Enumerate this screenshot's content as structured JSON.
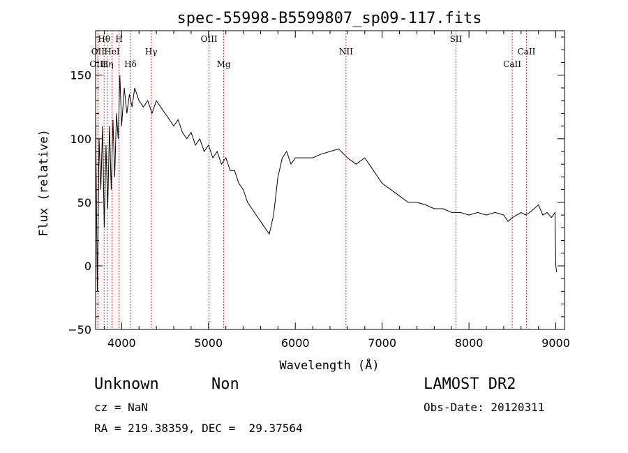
{
  "chart_data": {
    "type": "line",
    "title": "spec-55998-B5599807_sp09-117.fits",
    "xlabel": "Wavelength (Å)",
    "ylabel": "Flux (relative)",
    "xlim": [
      3700,
      9100
    ],
    "ylim": [
      -50,
      185
    ],
    "x_ticks": [
      4000,
      5000,
      6000,
      7000,
      8000,
      9000
    ],
    "y_ticks": [
      -50,
      0,
      50,
      100,
      150
    ],
    "grid": false,
    "series": [
      {
        "x": [
          3700,
          3720,
          3740,
          3760,
          3780,
          3800,
          3820,
          3840,
          3860,
          3880,
          3900,
          3920,
          3940,
          3960,
          3980,
          4000,
          4030,
          4060,
          4090,
          4120,
          4150,
          4200,
          4250,
          4300,
          4350,
          4400,
          4450,
          4500,
          4550,
          4600,
          4650,
          4700,
          4750,
          4800,
          4850,
          4900,
          4950,
          5000,
          5050,
          5100,
          5150,
          5200,
          5250,
          5300,
          5350,
          5400,
          5450,
          5500,
          5550,
          5600,
          5650,
          5700,
          5750,
          5800,
          5850,
          5900,
          5950,
          6000,
          6100,
          6200,
          6300,
          6400,
          6500,
          6600,
          6700,
          6800,
          6900,
          7000,
          7100,
          7200,
          7300,
          7400,
          7500,
          7600,
          7700,
          7800,
          7900,
          8000,
          8100,
          8200,
          8300,
          8400,
          8450,
          8500,
          8550,
          8600,
          8650,
          8700,
          8750,
          8800,
          8850,
          8900,
          8950,
          8990,
          9000,
          9010
        ],
        "y": [
          120,
          -20,
          100,
          60,
          110,
          30,
          95,
          45,
          110,
          60,
          115,
          70,
          120,
          100,
          150,
          110,
          140,
          120,
          135,
          125,
          140,
          130,
          125,
          130,
          120,
          130,
          125,
          120,
          115,
          110,
          115,
          105,
          100,
          105,
          95,
          100,
          90,
          95,
          85,
          90,
          80,
          85,
          75,
          75,
          65,
          60,
          50,
          45,
          40,
          35,
          30,
          25,
          40,
          70,
          85,
          90,
          80,
          85,
          85,
          85,
          88,
          90,
          92,
          85,
          80,
          85,
          75,
          65,
          60,
          55,
          50,
          50,
          48,
          45,
          45,
          42,
          42,
          40,
          42,
          40,
          42,
          40,
          35,
          38,
          40,
          42,
          40,
          42,
          45,
          48,
          40,
          42,
          38,
          42,
          0,
          -5
        ]
      }
    ],
    "lines": [
      {
        "label": "Hθ",
        "x": 3798,
        "row": 0
      },
      {
        "label": "H",
        "x": 3970,
        "row": 0
      },
      {
        "label": "OIII",
        "x": 5007,
        "row": 0
      },
      {
        "label": "SII",
        "x": 7850,
        "row": 0
      },
      {
        "label": "OII",
        "x": 3727,
        "row": 1
      },
      {
        "label": "HeI",
        "x": 3889,
        "row": 1
      },
      {
        "label": "Hγ",
        "x": 4340,
        "row": 1
      },
      {
        "label": "NII",
        "x": 6584,
        "row": 1
      },
      {
        "label": "CaII",
        "x": 8662,
        "row": 1
      },
      {
        "label": "OIII",
        "x": 3727,
        "row": 2
      },
      {
        "label": "Hη",
        "x": 3835,
        "row": 2
      },
      {
        "label": "Hδ",
        "x": 4102,
        "row": 2
      },
      {
        "label": "Mg",
        "x": 5175,
        "row": 2
      },
      {
        "label": "CaII",
        "x": 8498,
        "row": 2
      }
    ]
  },
  "info": {
    "class": "Unknown",
    "subclass": "Non",
    "survey": "LAMOST DR2",
    "cz": "cz = NaN",
    "obs_date": "Obs-Date: 20120311",
    "coords": "RA = 219.38359, DEC =  29.37564"
  }
}
